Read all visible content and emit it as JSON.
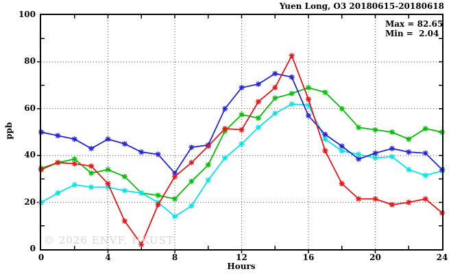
{
  "window": {
    "title": "Yuen Long, O3 20180615-20180618"
  },
  "annotations": {
    "max": "Max = 82.65",
    "min": "Min =  2.04"
  },
  "watermark": "© 2026 ENVF, HKUST",
  "chart_data": {
    "type": "line",
    "title": "Yuen Long, O3 20180615-20180618",
    "xlabel": "Hours",
    "ylabel": "ppb",
    "xlim": [
      0,
      24
    ],
    "ylim": [
      0,
      100
    ],
    "x_ticks": [
      0,
      4,
      8,
      12,
      16,
      20,
      24
    ],
    "x_minor_step": 2,
    "y_ticks": [
      0,
      20,
      40,
      60,
      80,
      100
    ],
    "y_minor_step": 10,
    "grid": true,
    "legend_position": "none",
    "marker": "star",
    "stat_max": 82.65,
    "stat_min": 2.04,
    "x": [
      0,
      1,
      2,
      3,
      4,
      5,
      6,
      7,
      8,
      9,
      10,
      11,
      12,
      13,
      14,
      15,
      16,
      17,
      18,
      19,
      20,
      21,
      22,
      23,
      24
    ],
    "series": [
      {
        "name": "green",
        "color": "#00bf00",
        "values": [
          34.5,
          37,
          38.5,
          32.5,
          34,
          31,
          24,
          23,
          21.5,
          29,
          36,
          50.5,
          57.5,
          56,
          64.5,
          66.5,
          69,
          67,
          60,
          52,
          51,
          50,
          47,
          51.5,
          50
        ]
      },
      {
        "name": "cyan",
        "color": "#00e6e6",
        "values": [
          20,
          24,
          27.5,
          26.5,
          26.5,
          25,
          24,
          20,
          14,
          18.5,
          29.5,
          39,
          45,
          52,
          58,
          62,
          61.5,
          47,
          42,
          40.5,
          39,
          39.5,
          34,
          31.5,
          33.5
        ]
      },
      {
        "name": "blue",
        "color": "#2222dd",
        "values": [
          50,
          48.5,
          47,
          43,
          47,
          45,
          41.5,
          40.5,
          32.5,
          43.5,
          44.5,
          60,
          69,
          70.5,
          75,
          73.5,
          57,
          49,
          44,
          38.5,
          41,
          43,
          41.5,
          41,
          34
        ]
      },
      {
        "name": "red",
        "color": "#ee1111",
        "values": [
          34,
          37,
          36.5,
          35.5,
          28,
          12,
          2.04,
          19,
          31,
          37,
          44,
          51.5,
          51,
          63,
          69,
          82.65,
          64,
          42,
          28,
          21.5,
          21.5,
          19,
          20,
          21.5,
          15.5
        ]
      }
    ]
  }
}
